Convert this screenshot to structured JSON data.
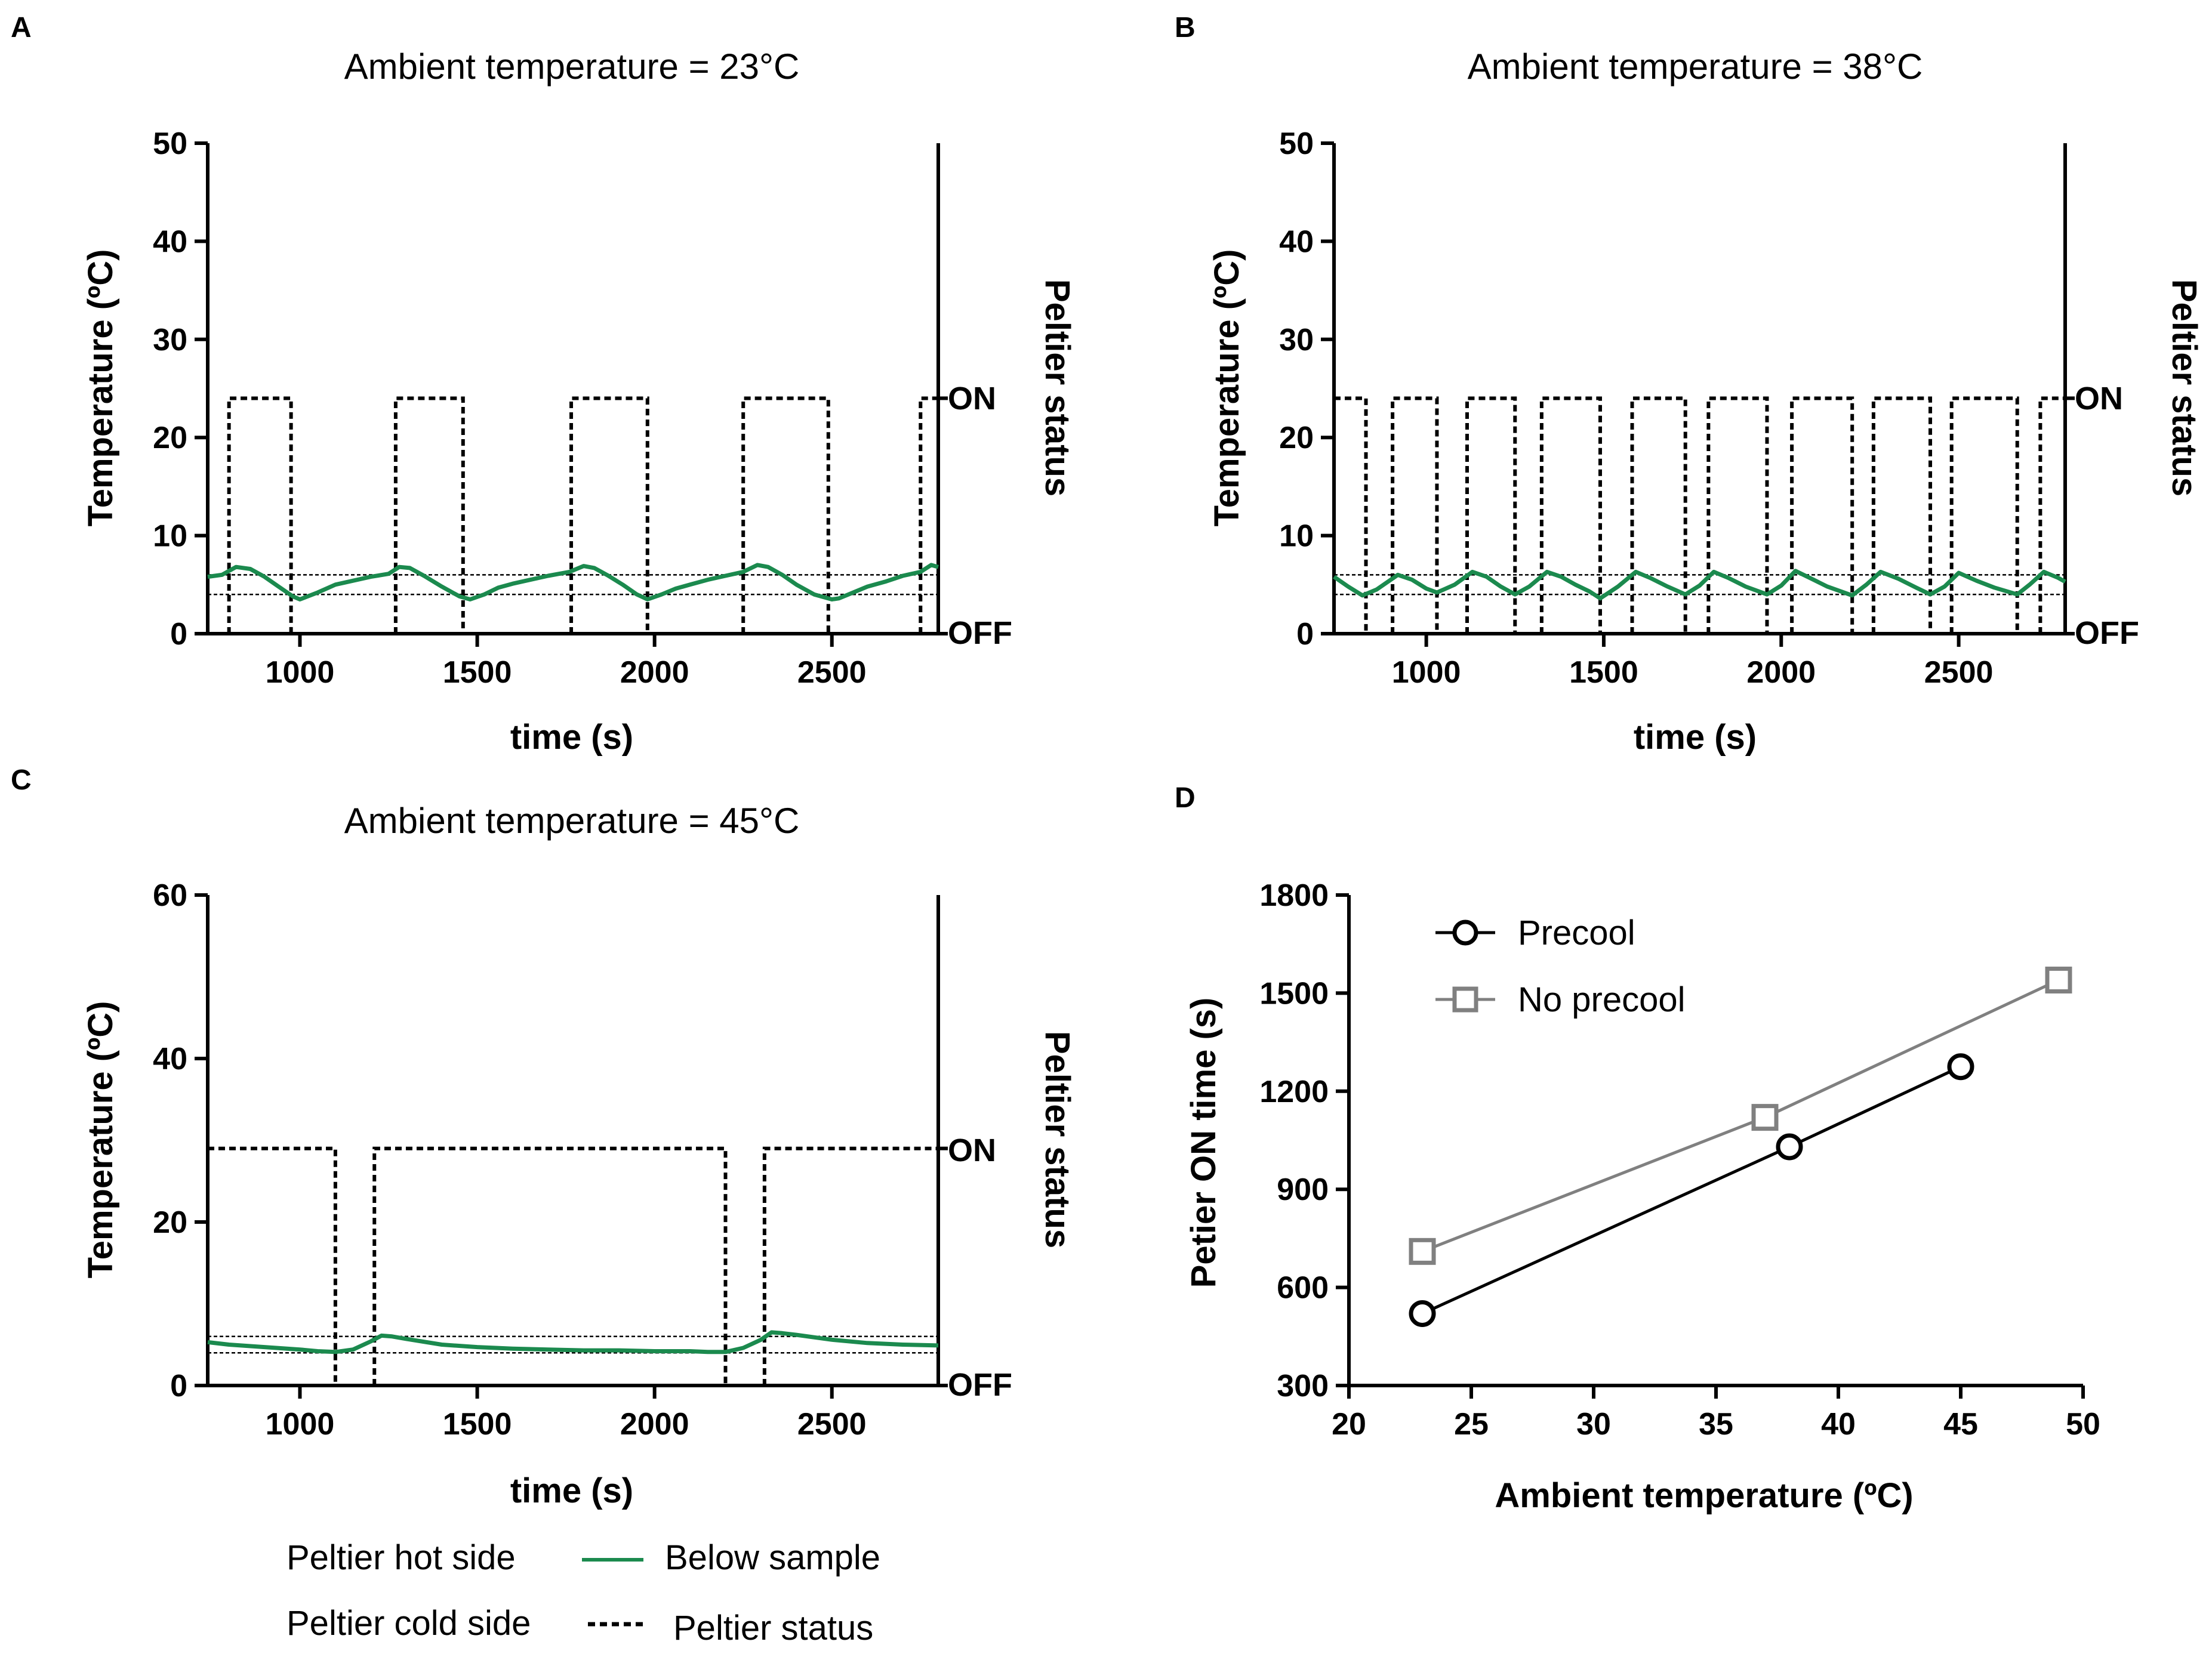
{
  "colors": {
    "green": "#1b8a4e",
    "black": "#000000",
    "gray": "#808080"
  },
  "bottom_legend": {
    "hot_side": "Peltier hot side",
    "cold_side": "Peltier cold side",
    "below_sample": "Below sample",
    "status": "Peltier status"
  },
  "chart_data": [
    {
      "panel": "A",
      "type": "line",
      "title": "Ambient temperature = 23°C",
      "xlabel": "time (s)",
      "ylabel": "Temperature (ºC)",
      "y2label": "Peltier status",
      "y2_ticks": [
        "ON",
        "OFF"
      ],
      "xlim": [
        740,
        2800
      ],
      "ylim": [
        0,
        50
      ],
      "xticks": [
        1000,
        1500,
        2000,
        2500
      ],
      "yticks": [
        0,
        10,
        20,
        30,
        40,
        50
      ],
      "threshold_lines": [
        4,
        6
      ],
      "status_on_level": 24,
      "status_on_intervals": [
        [
          800,
          975
        ],
        [
          1270,
          1460
        ],
        [
          1765,
          1980
        ],
        [
          2250,
          2490
        ],
        [
          2750,
          2800
        ]
      ],
      "series": [
        {
          "name": "Below sample",
          "x": [
            740,
            780,
            820,
            860,
            900,
            940,
            980,
            1000,
            1050,
            1100,
            1150,
            1200,
            1250,
            1280,
            1310,
            1350,
            1400,
            1450,
            1480,
            1520,
            1560,
            1600,
            1650,
            1700,
            1760,
            1800,
            1830,
            1870,
            1910,
            1950,
            1980,
            2020,
            2060,
            2100,
            2150,
            2200,
            2250,
            2290,
            2320,
            2360,
            2400,
            2450,
            2500,
            2520,
            2560,
            2600,
            2650,
            2700,
            2750,
            2780,
            2800
          ],
          "y": [
            5.8,
            6.0,
            6.8,
            6.6,
            5.8,
            4.8,
            3.8,
            3.5,
            4.2,
            5.0,
            5.4,
            5.8,
            6.1,
            6.8,
            6.7,
            5.9,
            4.8,
            3.8,
            3.5,
            4.0,
            4.7,
            5.1,
            5.5,
            5.9,
            6.3,
            6.9,
            6.7,
            5.9,
            5.0,
            4.0,
            3.5,
            4.0,
            4.6,
            5.0,
            5.5,
            5.9,
            6.3,
            7.0,
            6.8,
            6.0,
            5.0,
            4.0,
            3.5,
            3.6,
            4.2,
            4.8,
            5.3,
            5.9,
            6.3,
            7.0,
            6.8
          ]
        }
      ]
    },
    {
      "panel": "B",
      "type": "line",
      "title": "Ambient temperature = 38°C",
      "xlabel": "time (s)",
      "ylabel": "Temperature (ºC)",
      "y2label": "Peltier status",
      "y2_ticks": [
        "ON",
        "OFF"
      ],
      "xlim": [
        740,
        2800
      ],
      "ylim": [
        0,
        50
      ],
      "xticks": [
        1000,
        1500,
        2000,
        2500
      ],
      "yticks": [
        0,
        10,
        20,
        30,
        40,
        50
      ],
      "threshold_lines": [
        4,
        6
      ],
      "status_on_level": 24,
      "status_on_intervals": [
        [
          740,
          830
        ],
        [
          905,
          1030
        ],
        [
          1115,
          1250
        ],
        [
          1325,
          1490
        ],
        [
          1580,
          1730
        ],
        [
          1795,
          1960
        ],
        [
          2030,
          2200
        ],
        [
          2260,
          2420
        ],
        [
          2480,
          2665
        ],
        [
          2730,
          2800
        ]
      ],
      "series": [
        {
          "name": "Below sample",
          "x": [
            740,
            780,
            820,
            860,
            920,
            960,
            1000,
            1030,
            1080,
            1130,
            1170,
            1210,
            1250,
            1290,
            1340,
            1380,
            1420,
            1460,
            1490,
            1540,
            1590,
            1630,
            1680,
            1730,
            1770,
            1810,
            1850,
            1900,
            1960,
            2000,
            2040,
            2080,
            2130,
            2200,
            2240,
            2280,
            2330,
            2380,
            2420,
            2460,
            2500,
            2550,
            2600,
            2665,
            2700,
            2740,
            2780,
            2800
          ],
          "y": [
            5.8,
            4.8,
            3.9,
            4.5,
            6.0,
            5.5,
            4.6,
            4.2,
            5.0,
            6.3,
            5.8,
            4.8,
            4.0,
            4.8,
            6.3,
            5.8,
            5.0,
            4.3,
            3.6,
            4.8,
            6.3,
            5.7,
            4.8,
            4.0,
            4.9,
            6.3,
            5.7,
            4.8,
            4.0,
            4.9,
            6.4,
            5.7,
            4.8,
            3.9,
            5.0,
            6.3,
            5.6,
            4.7,
            4.0,
            4.8,
            6.2,
            5.4,
            4.7,
            4.0,
            5.0,
            6.3,
            5.7,
            5.3
          ]
        }
      ]
    },
    {
      "panel": "C",
      "type": "line",
      "title": "Ambient temperature = 45°C",
      "xlabel": "time (s)",
      "ylabel": "Temperature (ºC)",
      "y2label": "Peltier status",
      "y2_ticks": [
        "ON",
        "OFF"
      ],
      "xlim": [
        740,
        2800
      ],
      "ylim": [
        0,
        60
      ],
      "xticks": [
        1000,
        1500,
        2000,
        2500
      ],
      "yticks": [
        0,
        20,
        40,
        60
      ],
      "threshold_lines": [
        4,
        6
      ],
      "status_on_level": 29,
      "status_on_intervals": [
        [
          740,
          1100
        ],
        [
          1210,
          2200
        ],
        [
          2310,
          2800
        ]
      ],
      "series": [
        {
          "name": "Below sample",
          "x": [
            740,
            800,
            900,
            1000,
            1050,
            1100,
            1150,
            1200,
            1230,
            1260,
            1300,
            1400,
            1500,
            1600,
            1700,
            1800,
            1900,
            2000,
            2100,
            2150,
            2200,
            2250,
            2300,
            2330,
            2360,
            2400,
            2500,
            2600,
            2700,
            2800
          ],
          "y": [
            5.3,
            5.0,
            4.7,
            4.4,
            4.2,
            4.1,
            4.4,
            5.4,
            6.1,
            6.0,
            5.7,
            5.0,
            4.7,
            4.5,
            4.4,
            4.3,
            4.3,
            4.2,
            4.2,
            4.1,
            4.1,
            4.6,
            5.6,
            6.5,
            6.4,
            6.2,
            5.6,
            5.2,
            5.0,
            4.9
          ]
        }
      ]
    },
    {
      "panel": "D",
      "type": "line",
      "title": "",
      "xlabel": "Ambient temperature (ºC)",
      "ylabel": "Petier ON time (s)",
      "xlim": [
        20,
        50
      ],
      "ylim": [
        300,
        1800
      ],
      "xticks": [
        20,
        25,
        30,
        35,
        40,
        45,
        50
      ],
      "yticks": [
        300,
        600,
        900,
        1200,
        1500,
        1800
      ],
      "legend_position": "top-left",
      "series": [
        {
          "name": "Precool",
          "marker": "circle",
          "color": "#000000",
          "x": [
            23,
            38,
            45
          ],
          "y": [
            520,
            1030,
            1275
          ]
        },
        {
          "name": "No precool",
          "marker": "square",
          "color": "#808080",
          "x": [
            23,
            37,
            49
          ],
          "y": [
            710,
            1120,
            1540
          ]
        }
      ]
    }
  ]
}
